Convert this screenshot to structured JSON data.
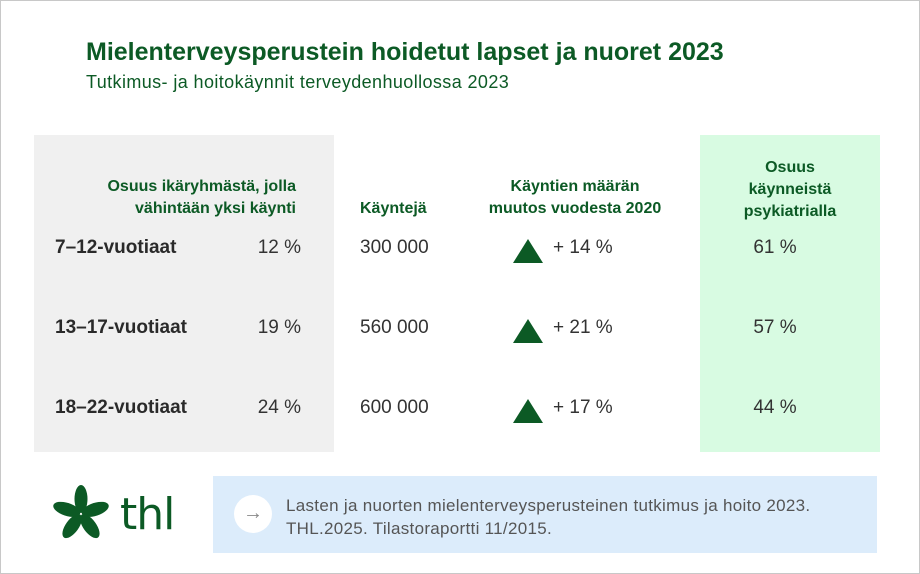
{
  "title": "Mielenterveysperustein hoidetut lapset ja nuoret 2023",
  "subtitle": "Tutkimus- ja hoitokäynnit terveydenhuollossa 2023",
  "headers": {
    "share": [
      "Osuus ikäryhmästä, jolla",
      "vähintään yksi käynti"
    ],
    "visits": "Käyntejä",
    "change": [
      "Käyntien määrän",
      "muutos vuodesta 2020"
    ],
    "psych": [
      "Osuus",
      "käynneistä",
      "psykiatrialla"
    ]
  },
  "rows": [
    {
      "label": "7–12-vuotiaat",
      "share": "12 %",
      "visits": "300 000",
      "change": "+ 14 %",
      "psych": "61 %"
    },
    {
      "label": "13–17-vuotiaat",
      "share": "19 %",
      "visits": "560 000",
      "change": "+ 21 %",
      "psych": "57 %"
    },
    {
      "label": "18–22-vuotiaat",
      "share": "24 %",
      "visits": "600 000",
      "change": "+ 17 %",
      "psych": "44 %"
    }
  ],
  "logo": "thl",
  "source": "Lasten ja nuorten mielenterveysperusteinen tutkimus ja hoito 2023. THL.2025. Tilastoraportti 11/2015.",
  "colors": {
    "green": "#0c5a25",
    "panel_gray": "#f0f0f0",
    "panel_green": "#d8fbe2",
    "source_bg": "#dcecfb"
  }
}
